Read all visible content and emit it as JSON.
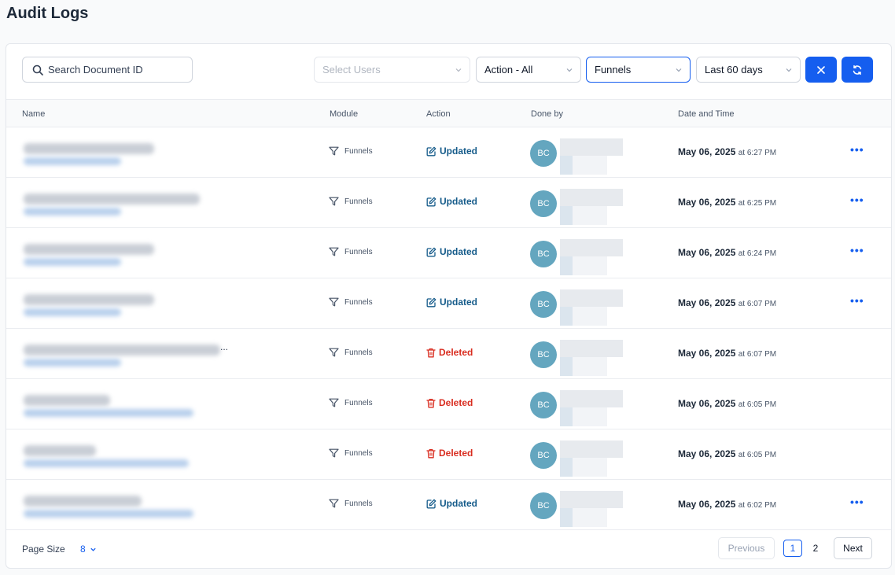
{
  "page": {
    "title": "Audit Logs"
  },
  "filters": {
    "search_placeholder": "Search Document ID",
    "users_placeholder": "Select Users",
    "action_value": "Action - All",
    "module_value": "Funnels",
    "range_value": "Last 60 days"
  },
  "table": {
    "headers": {
      "name": "Name",
      "module": "Module",
      "action": "Action",
      "done_by": "Done by",
      "date": "Date and Time"
    },
    "rows": [
      {
        "module": "Funnels",
        "action": "Updated",
        "initials": "BC",
        "date": "May 06, 2025",
        "time": "at 6:27 PM"
      },
      {
        "module": "Funnels",
        "action": "Updated",
        "initials": "BC",
        "date": "May 06, 2025",
        "time": "at 6:25 PM"
      },
      {
        "module": "Funnels",
        "action": "Updated",
        "initials": "BC",
        "date": "May 06, 2025",
        "time": "at 6:24 PM"
      },
      {
        "module": "Funnels",
        "action": "Updated",
        "initials": "BC",
        "date": "May 06, 2025",
        "time": "at 6:07 PM"
      },
      {
        "module": "Funnels",
        "action": "Deleted",
        "initials": "BC",
        "date": "May 06, 2025",
        "time": "at 6:07 PM"
      },
      {
        "module": "Funnels",
        "action": "Deleted",
        "initials": "BC",
        "date": "May 06, 2025",
        "time": "at 6:05 PM"
      },
      {
        "module": "Funnels",
        "action": "Deleted",
        "initials": "BC",
        "date": "May 06, 2025",
        "time": "at 6:05 PM"
      },
      {
        "module": "Funnels",
        "action": "Updated",
        "initials": "BC",
        "date": "May 06, 2025",
        "time": "at 6:02 PM"
      }
    ],
    "truncated_marker": "..."
  },
  "footer": {
    "page_size_label": "Page Size",
    "page_size_value": "8",
    "previous": "Previous",
    "pages": [
      "1",
      "2"
    ],
    "next": "Next"
  },
  "colors": {
    "accent": "#155eef",
    "updated": "#155b8a",
    "deleted": "#d92d20",
    "avatar": "#64a6bf"
  }
}
